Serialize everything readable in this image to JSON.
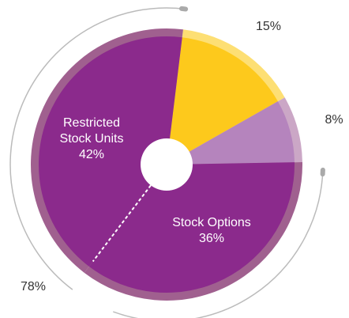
{
  "chart_data": {
    "type": "pie",
    "categories": [
      null,
      null,
      "Stock Options",
      "Restricted Stock Units"
    ],
    "values": [
      15,
      8,
      36,
      42
    ],
    "value_labels": [
      "15%",
      "8%",
      "36%",
      "42%"
    ],
    "colors": [
      "#fdc91c",
      "#b584bd",
      "#8b2a8c",
      "#8b2a8c"
    ],
    "rim_colors": [
      "#fddf74",
      "#cba7c6",
      "#a0608f",
      "#a0608f"
    ],
    "annotations": [
      {
        "text": "78%"
      }
    ]
  }
}
